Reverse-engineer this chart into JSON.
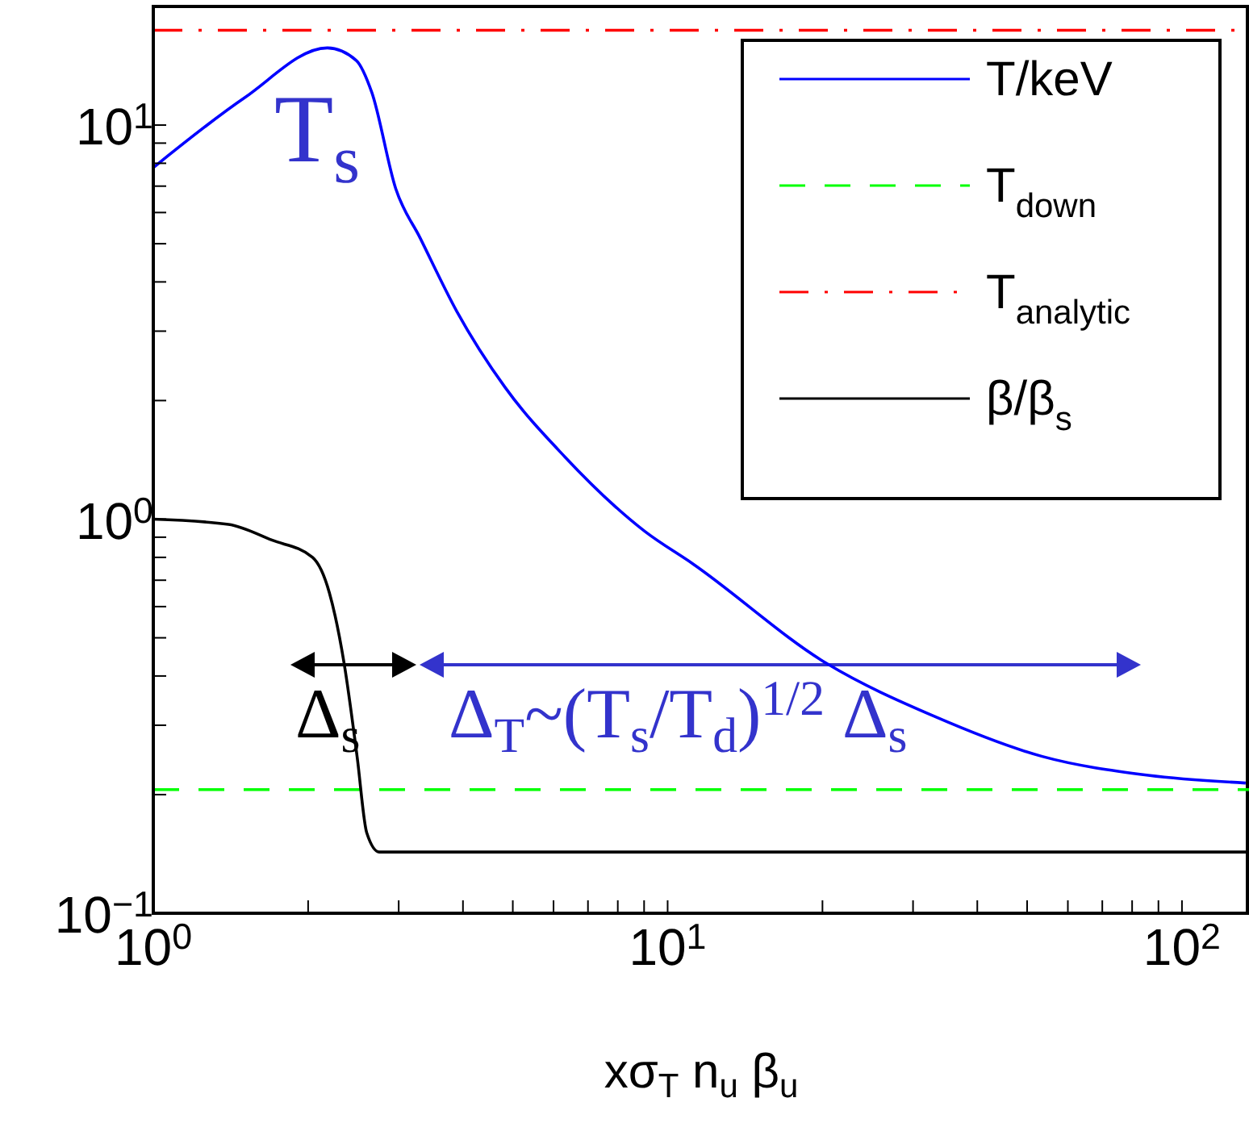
{
  "chart_data": {
    "type": "line",
    "xlabel": "xσ$_{T}$ n$_{u}$ β$_{u}$",
    "log": "xy",
    "xlim": [
      1,
      135
    ],
    "ylim": [
      0.1,
      20
    ],
    "xticks": [
      {
        "value": 1,
        "label": "10$^{0}$"
      },
      {
        "value": 2,
        "label": null
      },
      {
        "value": 3,
        "label": null
      },
      {
        "value": 4,
        "label": null
      },
      {
        "value": 5,
        "label": null
      },
      {
        "value": 6,
        "label": null
      },
      {
        "value": 7,
        "label": null
      },
      {
        "value": 8,
        "label": null
      },
      {
        "value": 9,
        "label": null
      },
      {
        "value": 10,
        "label": "10$^{1}$"
      },
      {
        "value": 20,
        "label": null
      },
      {
        "value": 30,
        "label": null
      },
      {
        "value": 40,
        "label": null
      },
      {
        "value": 50,
        "label": null
      },
      {
        "value": 60,
        "label": null
      },
      {
        "value": 70,
        "label": null
      },
      {
        "value": 80,
        "label": null
      },
      {
        "value": 90,
        "label": null
      },
      {
        "value": 100,
        "label": "10$^{2}$"
      }
    ],
    "yticks": [
      {
        "value": 0.1,
        "label": "10$^{−1}$"
      },
      {
        "value": 0.2,
        "label": null
      },
      {
        "value": 0.3,
        "label": null
      },
      {
        "value": 0.4,
        "label": null
      },
      {
        "value": 0.5,
        "label": null
      },
      {
        "value": 0.6,
        "label": null
      },
      {
        "value": 0.7,
        "label": null
      },
      {
        "value": 0.8,
        "label": null
      },
      {
        "value": 0.9,
        "label": null
      },
      {
        "value": 1,
        "label": "10$^{0}$"
      },
      {
        "value": 2,
        "label": null
      },
      {
        "value": 3,
        "label": null
      },
      {
        "value": 4,
        "label": null
      },
      {
        "value": 5,
        "label": null
      },
      {
        "value": 6,
        "label": null
      },
      {
        "value": 7,
        "label": null
      },
      {
        "value": 8,
        "label": null
      },
      {
        "value": 9,
        "label": null
      },
      {
        "value": 10,
        "label": "10$^{1}$"
      }
    ],
    "grid": false,
    "legend": "top right",
    "series": [
      {
        "name": "T/keV",
        "color": "#0000ff",
        "line_style": "solid",
        "x": [
          1,
          1.5,
          2.18,
          2.48,
          2.66,
          2.96,
          3.3,
          3.89,
          4.83,
          6.31,
          9.04,
          11.2,
          20.4,
          33,
          53.5,
          86,
          133
        ],
        "values": [
          7.8,
          11.7,
          15.7,
          14.6,
          12.1,
          6.9,
          5.18,
          3.37,
          2.16,
          1.44,
          0.93,
          0.77,
          0.43,
          0.316,
          0.25,
          0.224,
          0.214
        ]
      },
      {
        "name": "T$_{down}$",
        "color": "#00ff00",
        "line_style": "dashed",
        "x": [
          1,
          135
        ],
        "values": [
          0.206,
          0.206
        ]
      },
      {
        "name": "T$_{analytic}$",
        "color": "#ff0000",
        "line_style": "dashed",
        "x": [
          1,
          135
        ],
        "values": [
          17.4,
          17.4
        ]
      },
      {
        "name": "β/β$_{s}$",
        "color": "#000000",
        "line_style": "solid",
        "x": [
          1,
          1.4,
          1.7,
          2.04,
          2.2,
          2.35,
          2.49,
          2.6,
          2.75,
          5,
          135
        ],
        "values": [
          1,
          0.97,
          0.885,
          0.8,
          0.65,
          0.43,
          0.25,
          0.16,
          0.143,
          0.143,
          0.143
        ]
      }
    ],
    "annotations": [
      "T$_{s}$",
      "Δ$_{s}$",
      "Δ$_{T}$~(T$_{s}$/T$_{d}$)$^{1/2}$ Δ$_{s}$"
    ]
  }
}
